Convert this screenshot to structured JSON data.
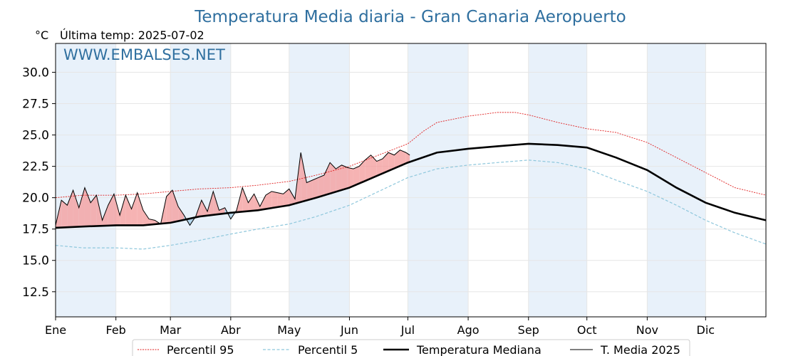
{
  "chart_data": {
    "type": "line",
    "title": "Temperatura Media diaria - Gran Canaria Aeropuerto",
    "unit_label": "°C",
    "last_temp_label": "Última temp: 2025-07-02",
    "watermark": "WWW.EMBALSES.NET",
    "ylim": [
      10.5,
      32.3
    ],
    "yticks": [
      "12.5",
      "15.0",
      "17.5",
      "20.0",
      "22.5",
      "25.0",
      "27.5",
      "30.0"
    ],
    "ytick_values": [
      12.5,
      15.0,
      17.5,
      20.0,
      22.5,
      25.0,
      27.5,
      30.0
    ],
    "xlim": [
      1,
      366
    ],
    "months": [
      "Ene",
      "Feb",
      "Mar",
      "Abr",
      "May",
      "Jun",
      "Jul",
      "Ago",
      "Sep",
      "Oct",
      "Nov",
      "Dic"
    ],
    "month_start_days": [
      1,
      32,
      60,
      91,
      121,
      152,
      182,
      213,
      244,
      274,
      305,
      335
    ],
    "grid": true,
    "legend_position": "bottom",
    "colors": {
      "p95": "#e02020",
      "p5": "#8ec7dc",
      "median": "#000000",
      "current": "#000000",
      "fill_above": "#f4a0a0",
      "fill_below": "#a6cfe8",
      "band": "#e8f1fa",
      "title": "#2f6f9f"
    },
    "series": [
      {
        "name": "Percentil 95",
        "x": [
          1,
          15,
          32,
          46,
          60,
          75,
          91,
          105,
          121,
          135,
          152,
          167,
          182,
          190,
          197,
          213,
          228,
          237,
          244,
          259,
          274,
          289,
          305,
          320,
          335,
          350,
          366
        ],
        "values": [
          20.0,
          20.2,
          20.2,
          20.3,
          20.5,
          20.7,
          20.8,
          21.0,
          21.3,
          21.8,
          22.5,
          23.4,
          24.3,
          25.3,
          26.0,
          26.5,
          26.8,
          26.8,
          26.6,
          26.0,
          25.5,
          25.2,
          24.4,
          23.2,
          22.0,
          20.8,
          20.2
        ]
      },
      {
        "name": "Percentil 5",
        "x": [
          1,
          15,
          32,
          46,
          60,
          75,
          91,
          105,
          121,
          135,
          152,
          167,
          182,
          197,
          213,
          228,
          244,
          259,
          274,
          289,
          305,
          320,
          335,
          350,
          366
        ],
        "values": [
          16.2,
          16.0,
          16.0,
          15.9,
          16.2,
          16.6,
          17.1,
          17.5,
          17.9,
          18.5,
          19.4,
          20.5,
          21.6,
          22.3,
          22.6,
          22.8,
          23.0,
          22.8,
          22.3,
          21.4,
          20.5,
          19.4,
          18.2,
          17.2,
          16.3
        ]
      },
      {
        "name": "Temperatura Mediana",
        "x": [
          1,
          15,
          32,
          46,
          60,
          75,
          91,
          105,
          121,
          135,
          152,
          167,
          182,
          197,
          213,
          228,
          244,
          259,
          274,
          289,
          305,
          320,
          335,
          350,
          366
        ],
        "values": [
          17.6,
          17.7,
          17.8,
          17.8,
          18.0,
          18.5,
          18.8,
          19.0,
          19.4,
          20.0,
          20.8,
          21.8,
          22.8,
          23.6,
          23.9,
          24.1,
          24.3,
          24.2,
          24.0,
          23.2,
          22.2,
          20.8,
          19.6,
          18.8,
          18.2
        ]
      },
      {
        "name": "T. Media 2025",
        "x": [
          1,
          4,
          7,
          10,
          13,
          16,
          19,
          22,
          25,
          28,
          31,
          34,
          37,
          40,
          43,
          46,
          49,
          52,
          55,
          58,
          61,
          64,
          67,
          70,
          73,
          76,
          79,
          82,
          85,
          88,
          91,
          94,
          97,
          100,
          103,
          106,
          109,
          112,
          115,
          118,
          121,
          124,
          127,
          130,
          133,
          136,
          139,
          142,
          145,
          148,
          151,
          154,
          157,
          160,
          163,
          166,
          169,
          172,
          175,
          178,
          181,
          183
        ],
        "values": [
          17.8,
          19.8,
          19.4,
          20.6,
          19.2,
          20.8,
          19.6,
          20.2,
          18.2,
          19.4,
          20.3,
          18.6,
          20.2,
          19.1,
          20.4,
          19.0,
          18.3,
          18.2,
          17.9,
          20.1,
          20.6,
          19.3,
          18.6,
          17.8,
          18.5,
          19.8,
          18.9,
          20.5,
          19.0,
          19.2,
          18.3,
          19.0,
          20.8,
          19.6,
          20.3,
          19.3,
          20.2,
          20.5,
          20.4,
          20.3,
          20.7,
          19.9,
          23.6,
          21.2,
          21.4,
          21.6,
          21.8,
          22.8,
          22.3,
          22.6,
          22.4,
          22.3,
          22.5,
          23.0,
          23.4,
          22.9,
          23.1,
          23.6,
          23.4,
          23.8,
          23.6,
          23.4
        ]
      }
    ]
  }
}
